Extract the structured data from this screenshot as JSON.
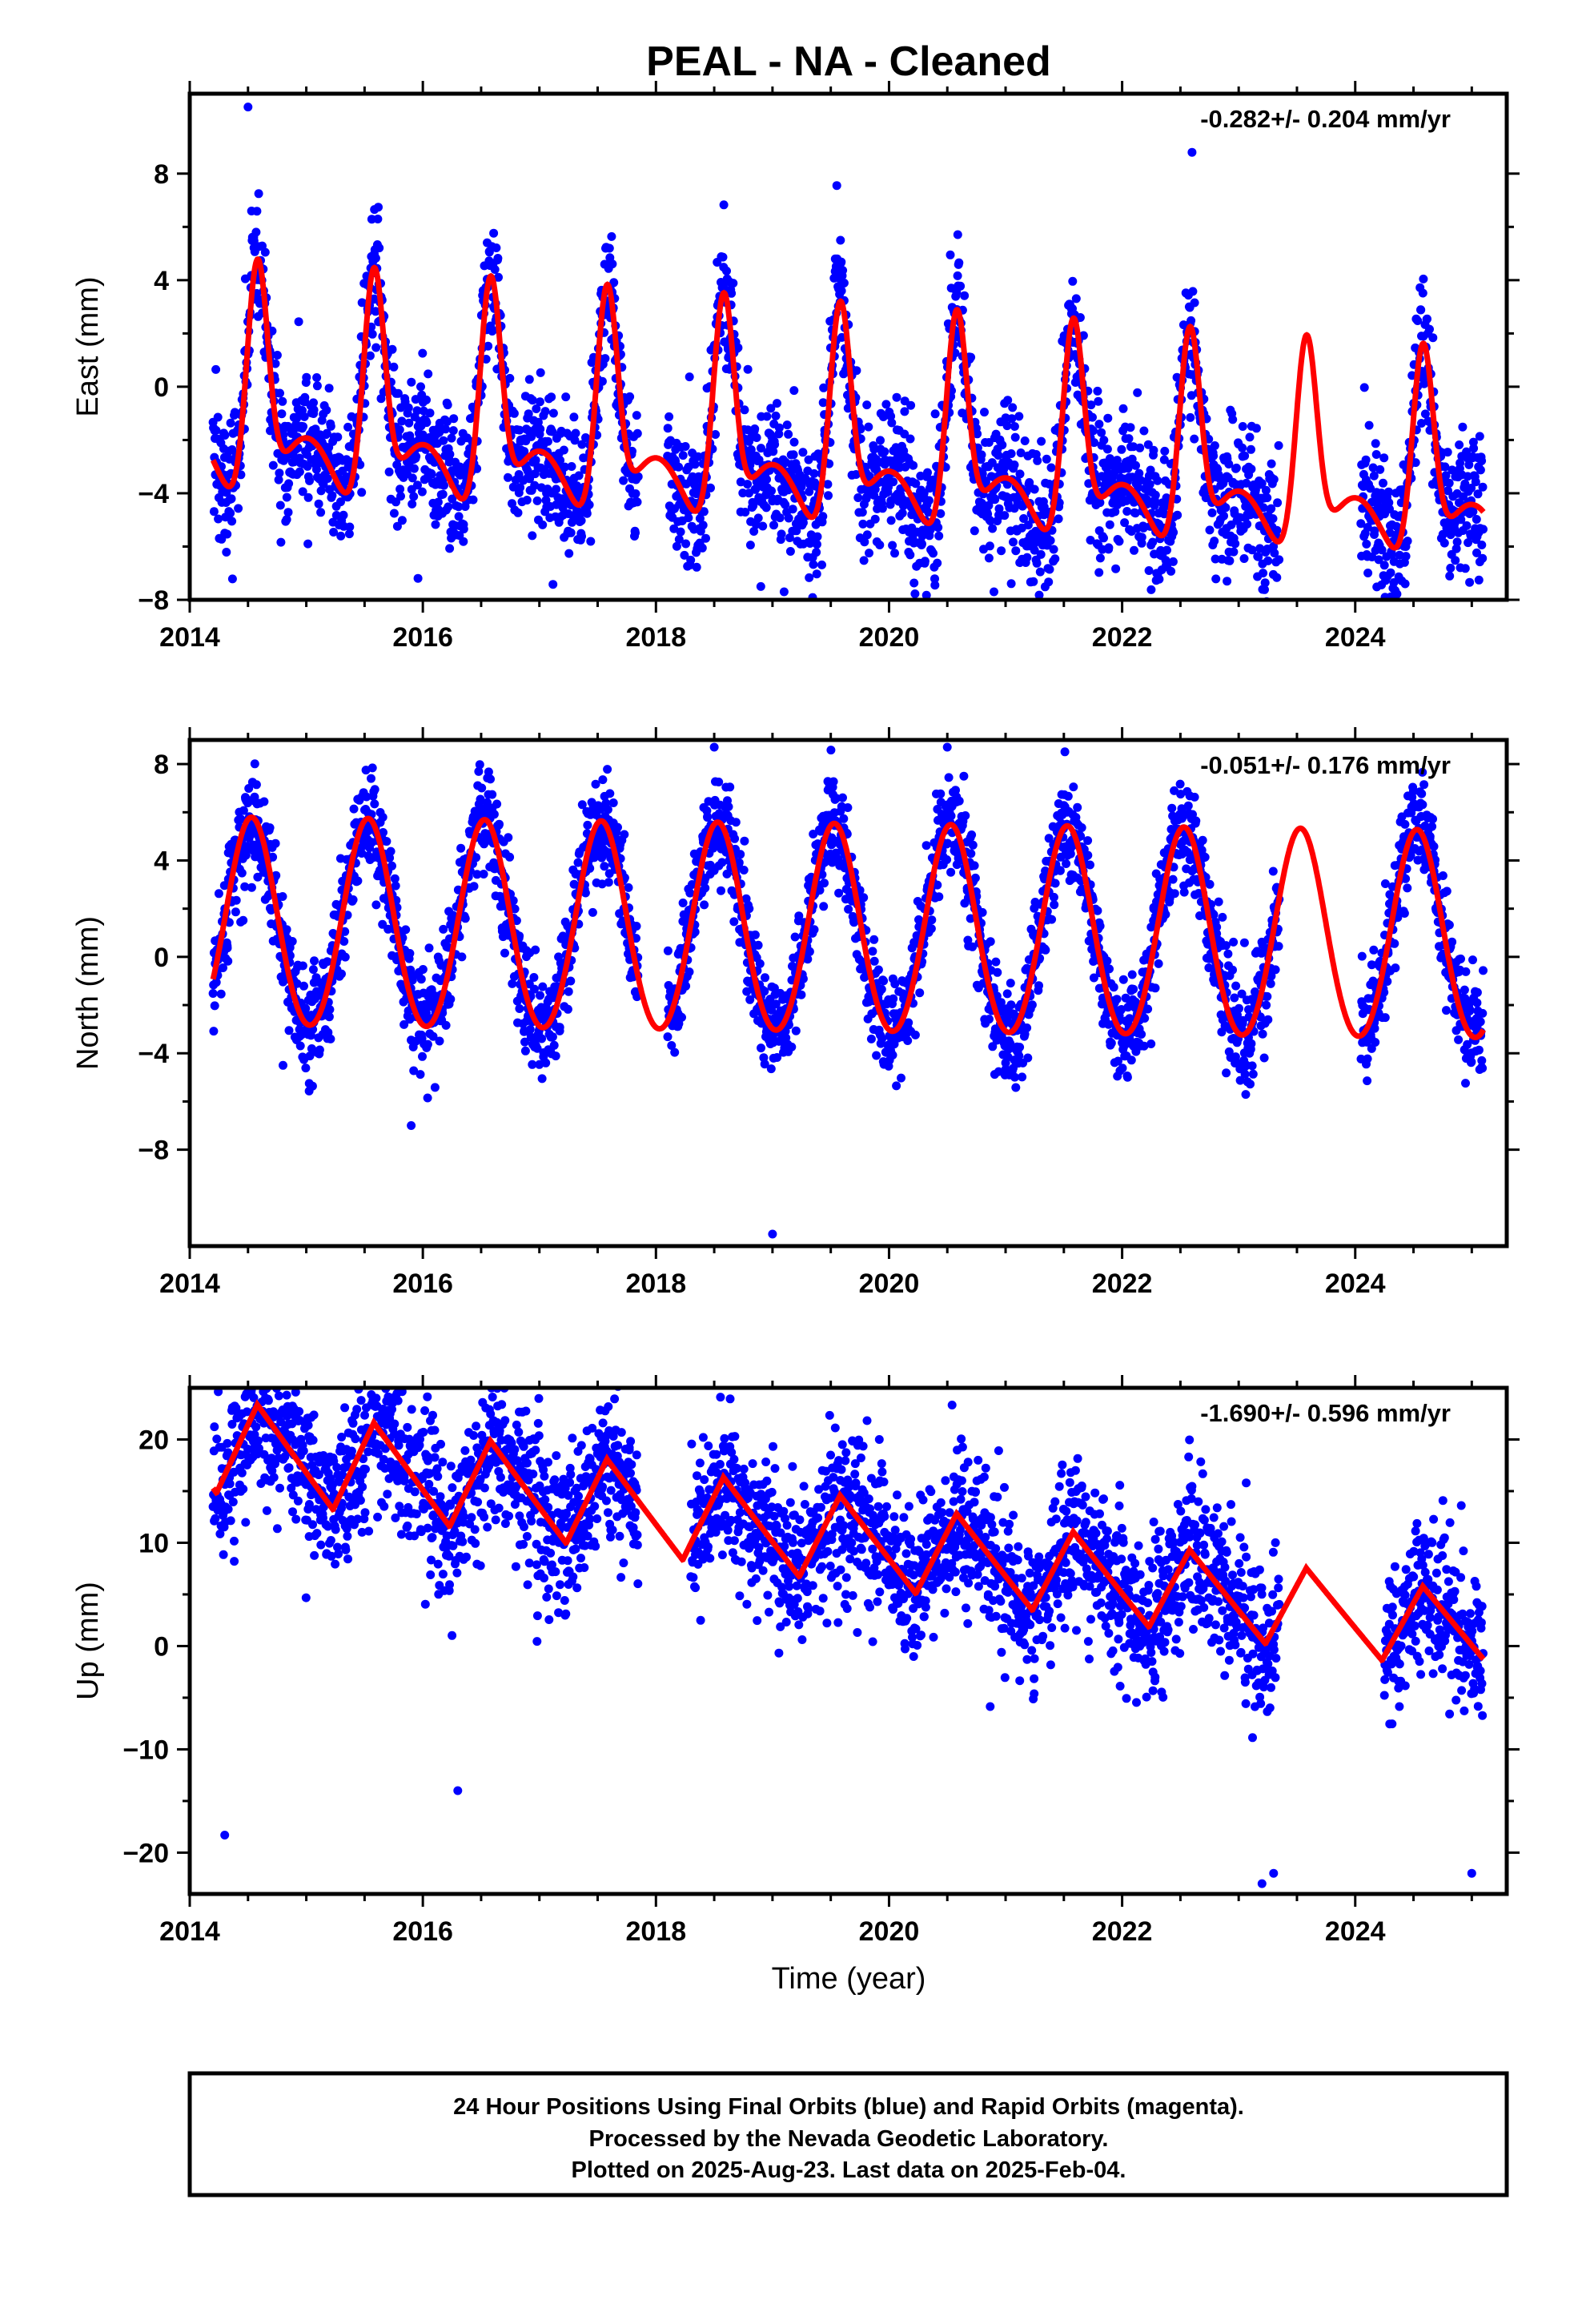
{
  "title": "PEAL  - NA - Cleaned",
  "xlabel": "Time (year)",
  "footer": {
    "line1": "24 Hour Positions Using Final Orbits (blue) and Rapid Orbits (magenta).",
    "line2": "Processed by the Nevada Geodetic Laboratory.",
    "line3": "Plotted on 2025-Aug-23. Last data on 2025-Feb-04."
  },
  "colors": {
    "points": "#0000ff",
    "model": "#ff0000",
    "frame": "#000000"
  },
  "chart_data": [
    {
      "type": "scatter",
      "ylabel": "East (mm)",
      "rate": "-0.282+/- 0.204 mm/yr",
      "xlim": [
        2014,
        2025.3
      ],
      "ylim": [
        -8,
        11
      ],
      "xticks": [
        2014,
        2016,
        2018,
        2020,
        2022,
        2024
      ],
      "yticks": [
        -8,
        -4,
        0,
        4,
        8
      ],
      "ytick_labels": [
        "−8",
        "−4",
        "0",
        "4",
        "8"
      ],
      "model": {
        "mean": 0,
        "trend": -0.282,
        "amp1": 4.3,
        "amp2": 1.4,
        "peak": 0.58,
        "ampTrend": -0.1,
        "cusp": true
      },
      "data_spans": [
        [
          2014.2,
          2017.85
        ],
        [
          2018.1,
          2023.35
        ],
        [
          2024.05,
          2025.1
        ]
      ],
      "scatter_sd": 1.3,
      "points_per_year": 300,
      "outliers": [
        [
          2014.5,
          10.5
        ],
        [
          2014.3,
          -5.5
        ],
        [
          2018.9,
          -7.5
        ],
        [
          2019.1,
          -7.7
        ],
        [
          2020.9,
          -7.7
        ],
        [
          2022.6,
          8.8
        ],
        [
          2022.9,
          -7.3
        ]
      ]
    },
    {
      "type": "scatter",
      "ylabel": "North (mm)",
      "rate": "-0.051+/- 0.176 mm/yr",
      "xlim": [
        2014,
        2025.3
      ],
      "ylim": [
        -12,
        9
      ],
      "xticks": [
        2014,
        2016,
        2018,
        2020,
        2022,
        2024
      ],
      "yticks": [
        -8,
        -4,
        0,
        4,
        8
      ],
      "ytick_labels": [
        "−8",
        "−4",
        "0",
        "4",
        "8"
      ],
      "model": {
        "mean": 1.0,
        "trend": -0.051,
        "amp1": 4.3,
        "amp2": 0.8,
        "peak": 0.53,
        "ampTrend": 0,
        "cusp": false
      },
      "data_spans": [
        [
          2014.2,
          2017.85
        ],
        [
          2018.1,
          2023.35
        ],
        [
          2024.05,
          2025.1
        ]
      ],
      "scatter_sd": 1.1,
      "points_per_year": 300,
      "outliers": [
        [
          2015.9,
          -7
        ],
        [
          2019.0,
          -11.5
        ],
        [
          2018.5,
          8.7
        ],
        [
          2020.5,
          8.7
        ],
        [
          2014.8,
          -4.5
        ]
      ]
    },
    {
      "type": "scatter",
      "ylabel": "Up (mm)",
      "rate": "-1.690+/- 0.596 mm/yr",
      "xlim": [
        2014,
        2025.3
      ],
      "ylim": [
        -24,
        25
      ],
      "xticks": [
        2014,
        2016,
        2018,
        2020,
        2022,
        2024
      ],
      "yticks": [
        -20,
        -10,
        0,
        10,
        20
      ],
      "ytick_labels": [
        "−20",
        "−10",
        "0",
        "10",
        "20"
      ],
      "model": {
        "mean": 10.5,
        "trend": -1.69,
        "amp1": 4.0,
        "amp2": 3.2,
        "peak": 0.58,
        "ampTrend": -0.15,
        "cusp": false,
        "amp1Shape": "sawtooth"
      },
      "data_spans": [
        [
          2014.2,
          2017.85
        ],
        [
          2018.3,
          2023.35
        ],
        [
          2024.25,
          2025.1
        ]
      ],
      "scatter_sd": 3.8,
      "points_per_year": 300,
      "outliers": [
        [
          2014.3,
          -18.3
        ],
        [
          2015.6,
          24
        ],
        [
          2016.3,
          -14
        ],
        [
          2019.6,
          19.5
        ],
        [
          2023.2,
          -23
        ],
        [
          2023.3,
          -22
        ],
        [
          2025.0,
          -22
        ],
        [
          2021.6,
          17
        ]
      ]
    }
  ]
}
